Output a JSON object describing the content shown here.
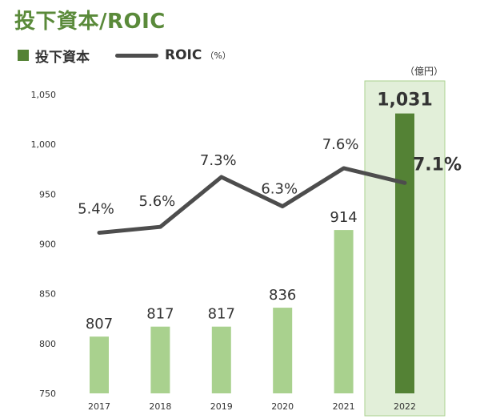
{
  "title": "投下資本/ROIC",
  "legend": {
    "bar_label": "投下資本",
    "line_label": "ROIC",
    "line_unit": "（%）"
  },
  "unit": "（億円）",
  "colors": {
    "bar": "#a9d18e",
    "bar_highlight": "#548235",
    "highlight_bg": "#e2efd9",
    "highlight_border": "#a9d18e",
    "line": "#4d4d4d",
    "title": "#5a8a3a"
  },
  "chart_data": {
    "type": "bar",
    "categories": [
      "2017",
      "2018",
      "2019",
      "2020",
      "2021",
      "2022"
    ],
    "series": [
      {
        "name": "投下資本",
        "type": "bar",
        "values": [
          807,
          817,
          817,
          836,
          914,
          1031
        ],
        "labels": [
          "807",
          "817",
          "817",
          "836",
          "914",
          "1,031"
        ]
      },
      {
        "name": "ROIC",
        "type": "line",
        "unit": "%",
        "values": [
          5.4,
          5.6,
          7.3,
          6.3,
          7.6,
          7.1
        ],
        "labels": [
          "5.4%",
          "5.6%",
          "7.3%",
          "6.3%",
          "7.6%",
          "7.1%"
        ]
      }
    ],
    "yaxis": {
      "min": 750,
      "max": 1050,
      "ticks": [
        750,
        800,
        850,
        900,
        950,
        1000,
        1050
      ],
      "tick_labels": [
        "750",
        "800",
        "850",
        "900",
        "950",
        "1,000",
        "1,050"
      ]
    },
    "highlight_category": "2022",
    "grid": false,
    "legend_position": "top-left"
  }
}
